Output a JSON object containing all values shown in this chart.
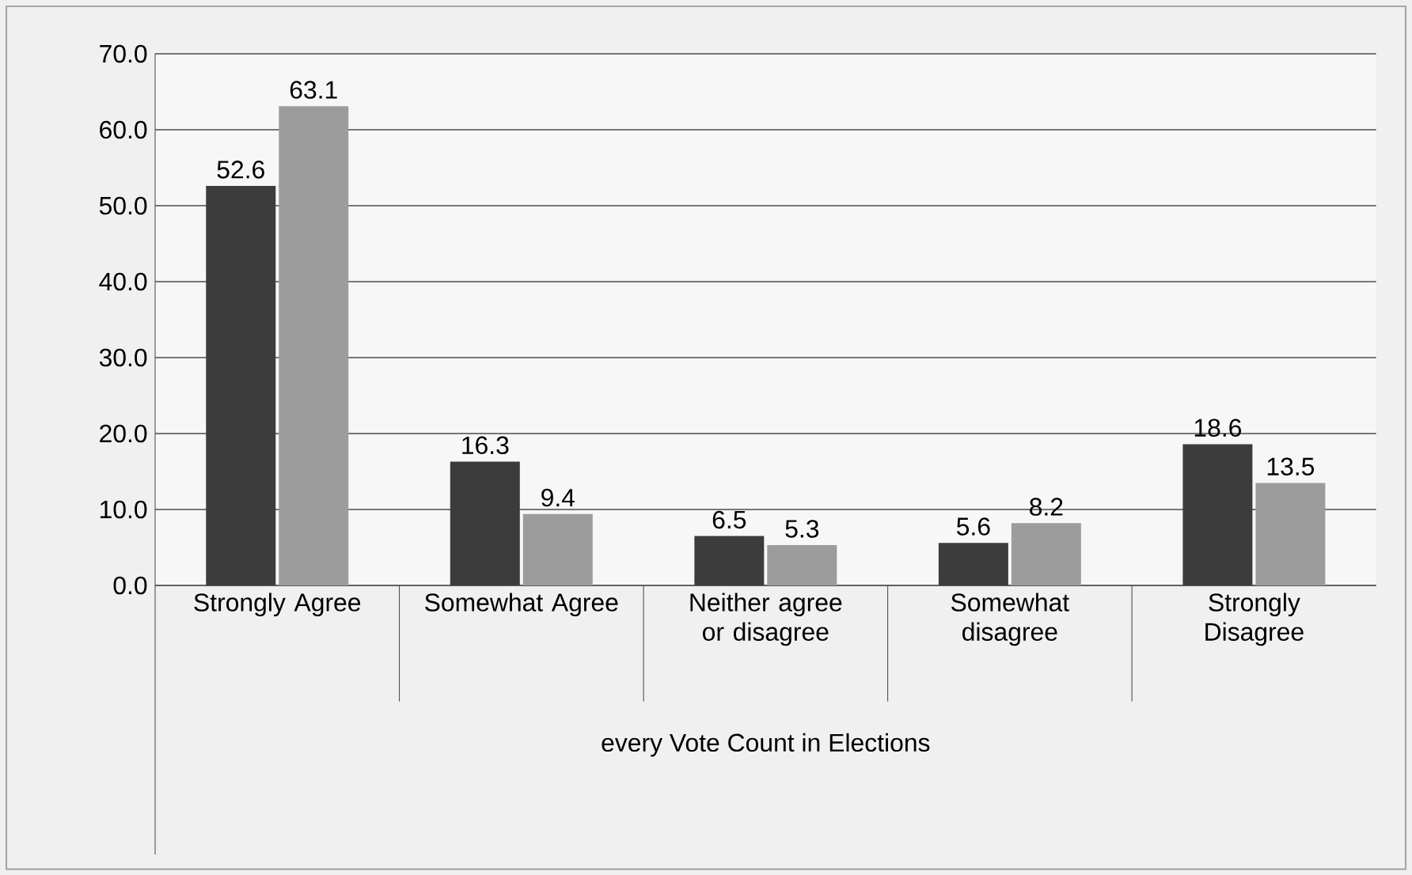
{
  "chart_data": {
    "type": "bar",
    "xlabel": "every Vote Count in Elections",
    "categories": [
      "Strongly Agree",
      "Somewhat Agree",
      "Neither agree or disagree",
      "Somewhat disagree",
      "Strongly Disagree"
    ],
    "series": [
      {
        "color": "#3c3c3c",
        "values": [
          52.6,
          16.3,
          6.5,
          5.6,
          18.6
        ]
      },
      {
        "color": "#9c9c9c",
        "values": [
          63.1,
          9.4,
          5.3,
          8.2,
          13.5
        ]
      }
    ],
    "ylim": [
      0,
      70
    ],
    "yticks": [
      {
        "value": 0,
        "label": "0.0"
      },
      {
        "value": 10,
        "label": "10.0"
      },
      {
        "value": 20,
        "label": "20.0"
      },
      {
        "value": 30,
        "label": "30.0"
      },
      {
        "value": 40,
        "label": "40.0"
      },
      {
        "value": 50,
        "label": "50.0"
      },
      {
        "value": 60,
        "label": "60.0"
      },
      {
        "value": 70,
        "label": "70.0"
      }
    ],
    "grid": "y",
    "data_labels": true
  }
}
